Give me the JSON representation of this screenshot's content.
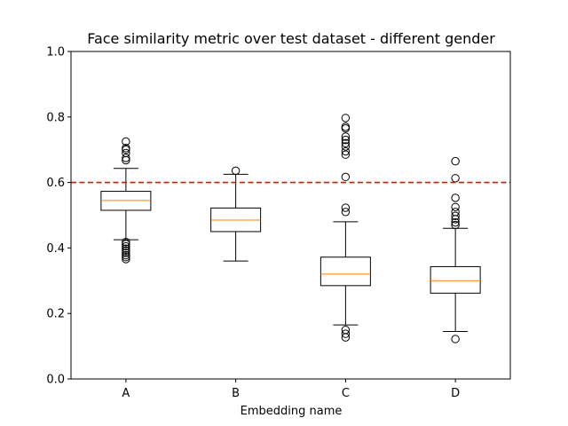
{
  "chart_data": {
    "type": "box",
    "title": "Face similarity metric over test dataset - different gender",
    "xlabel": "Embedding name",
    "ylabel": "",
    "ylim": [
      0.0,
      1.0
    ],
    "yticks": [
      "0.0",
      "0.2",
      "0.4",
      "0.6",
      "0.8",
      "1.0"
    ],
    "ytick_values": [
      0.0,
      0.2,
      0.4,
      0.6,
      0.8,
      1.0
    ],
    "grid": false,
    "categories": [
      "A",
      "B",
      "C",
      "D"
    ],
    "boxes": [
      {
        "label": "A",
        "whisker_low": 0.425,
        "q1": 0.515,
        "median": 0.545,
        "q3": 0.573,
        "whisker_high": 0.643,
        "outliers": [
          0.725,
          0.705,
          0.7,
          0.69,
          0.675,
          0.668,
          0.418,
          0.412,
          0.405,
          0.398,
          0.392,
          0.385,
          0.378,
          0.372,
          0.366
        ]
      },
      {
        "label": "B",
        "whisker_low": 0.36,
        "q1": 0.45,
        "median": 0.485,
        "q3": 0.522,
        "whisker_high": 0.625,
        "outliers": [
          0.636
        ]
      },
      {
        "label": "C",
        "whisker_low": 0.165,
        "q1": 0.285,
        "median": 0.32,
        "q3": 0.372,
        "whisker_high": 0.48,
        "outliers": [
          0.797,
          0.77,
          0.765,
          0.74,
          0.73,
          0.72,
          0.71,
          0.695,
          0.685,
          0.617,
          0.523,
          0.51,
          0.15,
          0.138,
          0.127
        ]
      },
      {
        "label": "D",
        "whisker_low": 0.145,
        "q1": 0.262,
        "median": 0.3,
        "q3": 0.343,
        "whisker_high": 0.46,
        "outliers": [
          0.665,
          0.613,
          0.553,
          0.525,
          0.51,
          0.498,
          0.488,
          0.478,
          0.47,
          0.122
        ]
      }
    ],
    "reference_line": {
      "value": 0.6,
      "color": "#ff0000",
      "style": "dashed"
    },
    "colors": {
      "box": "#000000",
      "median": "#ff7f0e",
      "background": "#ffffff"
    }
  }
}
